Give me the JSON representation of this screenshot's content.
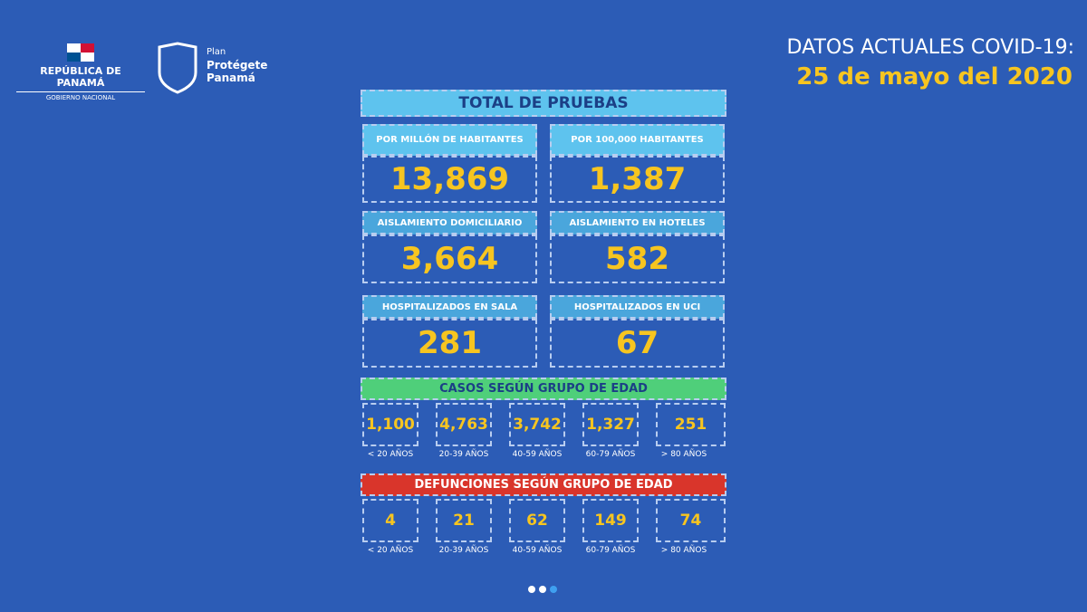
{
  "header": {
    "government": {
      "name": "REPÚBLICA DE PANAMÁ",
      "subtitle": "GOBIERNO NACIONAL"
    },
    "plan": {
      "line1": "Plan",
      "line2": "Protégete",
      "line3": "Panamá"
    },
    "title": "DATOS ACTUALES COVID-19:",
    "date": "25 de mayo del 2020"
  },
  "panel": {
    "title": "TOTAL DE PRUEBAS",
    "stats": [
      {
        "label": "POR MILLÓN DE HABITANTES",
        "value": "13,869"
      },
      {
        "label": "POR 100,000 HABITANTES",
        "value": "1,387"
      },
      {
        "label": "AISLAMIENTO DOMICILIARIO",
        "value": "3,664"
      },
      {
        "label": "AISLAMIENTO EN HOTELES",
        "value": "582"
      },
      {
        "label": "HOSPITALIZADOS EN SALA",
        "value": "281"
      },
      {
        "label": "HOSPITALIZADOS EN UCI",
        "value": "67"
      }
    ],
    "cases": {
      "title": "CASOS SEGÚN GRUPO DE EDAD",
      "groups": [
        {
          "value": "1,100",
          "label": "< 20 AÑOS"
        },
        {
          "value": "4,763",
          "label": "20-39 AÑOS"
        },
        {
          "value": "3,742",
          "label": "40-59 AÑOS"
        },
        {
          "value": "1,327",
          "label": "60-79 AÑOS"
        },
        {
          "value": "251",
          "label": "> 80 AÑOS"
        }
      ]
    },
    "deaths": {
      "title": "DEFUNCIONES SEGÚN GRUPO DE EDAD",
      "groups": [
        {
          "value": "4",
          "label": "< 20 AÑOS"
        },
        {
          "value": "21",
          "label": "20-39 AÑOS"
        },
        {
          "value": "62",
          "label": "40-59 AÑOS"
        },
        {
          "value": "149",
          "label": "60-79 AÑOS"
        },
        {
          "value": "74",
          "label": "> 80 AÑOS"
        }
      ]
    }
  }
}
